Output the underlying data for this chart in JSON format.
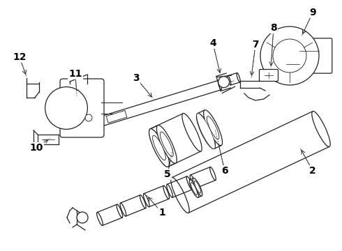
{
  "bg_color": "#ffffff",
  "line_color": "#222222",
  "label_color": "#000000",
  "label_fontsize": 10,
  "fig_width": 4.9,
  "fig_height": 3.6,
  "dpi": 100
}
